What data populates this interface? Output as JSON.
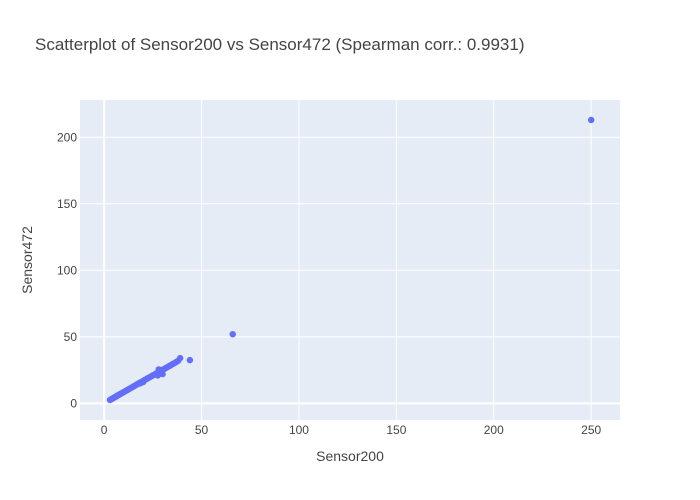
{
  "chart_data": {
    "type": "scatter",
    "title": "Scatterplot of Sensor200 vs Sensor472 (Spearman corr.: 0.9931)",
    "xlabel": "Sensor200",
    "ylabel": "Sensor472",
    "xlim": [
      -12.4,
      264.8
    ],
    "ylim": [
      -12.5,
      228.0
    ],
    "xticks": [
      0,
      50,
      100,
      150,
      200,
      250
    ],
    "yticks": [
      0,
      50,
      100,
      150,
      200
    ],
    "grid": true,
    "series": [
      {
        "name": "Sensor472",
        "color": "#636efa",
        "x": [
          3.0,
          3.4,
          3.8,
          4.2,
          4.6,
          5.0,
          5.5,
          6.0,
          6.5,
          7.0,
          7.5,
          8.0,
          8.6,
          9.2,
          9.8,
          10.4,
          11.0,
          11.6,
          12.2,
          12.8,
          13.4,
          14.0,
          14.7,
          15.4,
          16.1,
          16.8,
          17.5,
          18.2,
          19.0,
          19.8,
          20.6,
          21.4,
          22.2,
          23.0,
          23.8,
          24.6,
          25.4,
          26.2,
          27.0,
          27.8,
          28.6,
          29.4,
          30.2,
          31.0,
          31.8,
          32.6,
          33.4,
          34.2,
          35.0,
          36.0,
          37.0,
          38.0,
          39.0,
          28.0,
          30.0,
          27.5,
          29.0,
          20.0,
          18.5,
          44.0,
          66.0,
          250.0
        ],
        "y": [
          2.5,
          2.9,
          3.2,
          3.6,
          3.9,
          4.3,
          4.7,
          5.1,
          5.5,
          6.0,
          6.4,
          6.8,
          7.3,
          7.8,
          8.3,
          8.8,
          9.3,
          9.8,
          10.3,
          10.8,
          11.3,
          11.8,
          12.4,
          13.0,
          13.6,
          14.2,
          14.8,
          15.4,
          16.0,
          16.7,
          17.4,
          18.0,
          18.7,
          19.4,
          20.0,
          20.7,
          21.4,
          22.0,
          22.7,
          23.4,
          24.0,
          24.7,
          25.4,
          26.0,
          26.7,
          27.4,
          28.0,
          28.7,
          29.4,
          30.2,
          31.1,
          32.0,
          34.0,
          25.5,
          22.0,
          21.0,
          24.5,
          16.0,
          15.0,
          32.5,
          52.0,
          213.0
        ]
      }
    ]
  }
}
